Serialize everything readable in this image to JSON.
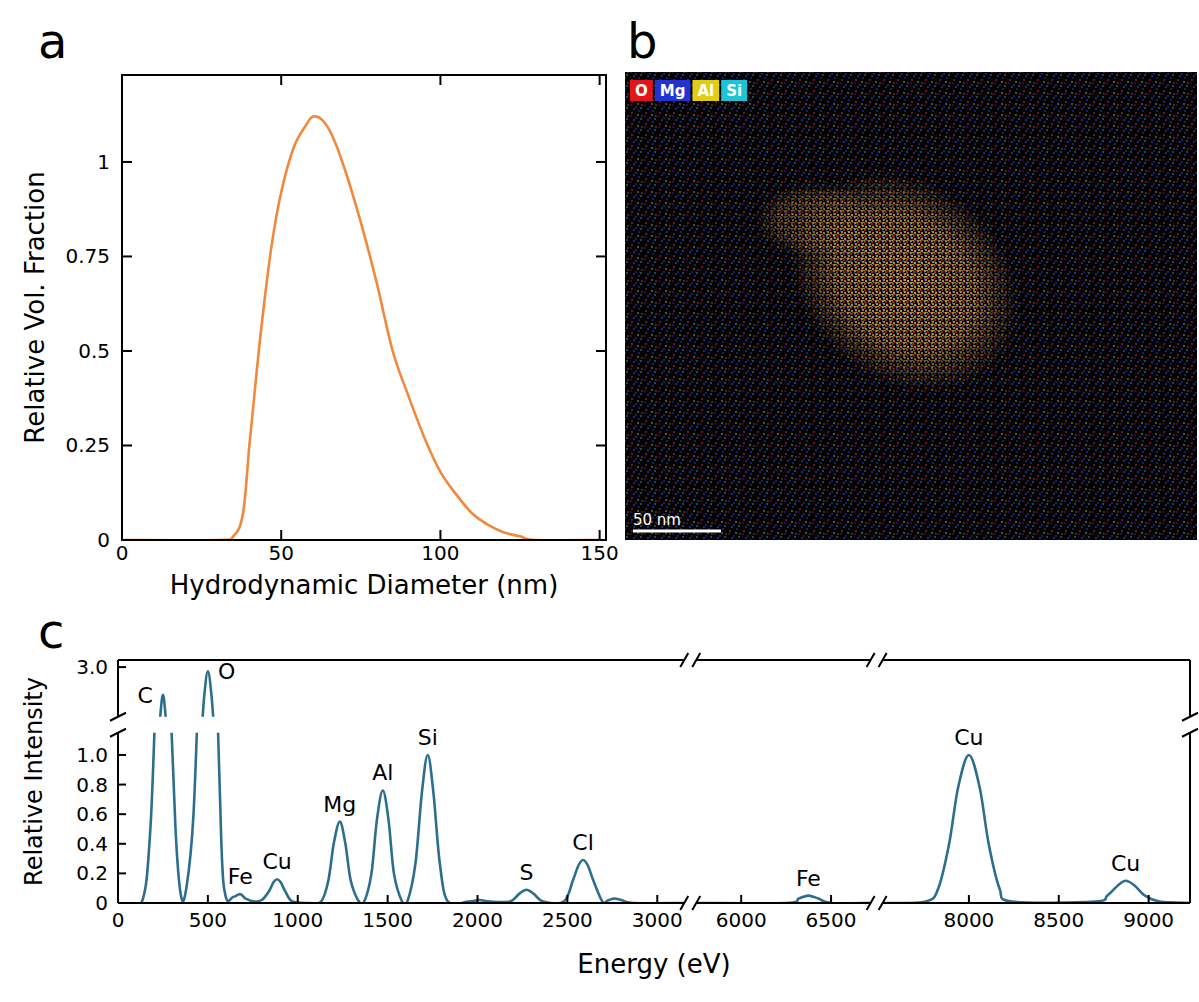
{
  "chart_data": [
    {
      "panel_label": "a",
      "type": "line",
      "x_label": "Hydrodynamic Diameter (nm)",
      "y_label": "Relative Vol. Fraction",
      "x": [
        0,
        30,
        35,
        38,
        40,
        42,
        44,
        47,
        50,
        54,
        58,
        60,
        63,
        66,
        70,
        75,
        80,
        85,
        90,
        95,
        100,
        105,
        110,
        115,
        120,
        125,
        130,
        150
      ],
      "series": [
        {
          "color": "#f0883e",
          "values": [
            0,
            0,
            0.01,
            0.07,
            0.25,
            0.42,
            0.58,
            0.78,
            0.92,
            1.04,
            1.1,
            1.12,
            1.11,
            1.07,
            0.98,
            0.84,
            0.68,
            0.5,
            0.38,
            0.27,
            0.18,
            0.12,
            0.07,
            0.04,
            0.02,
            0.01,
            0,
            0
          ]
        }
      ],
      "xlim": [
        0,
        152
      ],
      "ylim": [
        0,
        1.23
      ],
      "xticks": [
        0,
        50,
        100,
        150
      ],
      "yticks": [
        0,
        0.25,
        0.5,
        0.75,
        1
      ]
    },
    {
      "panel_label": "c",
      "type": "line",
      "x_label": "Energy (eV)",
      "y_label": "Relative Intensity",
      "xlim": [
        0,
        9230
      ],
      "x_breaks": [
        [
          3150,
          5750
        ],
        [
          6720,
          7520
        ]
      ],
      "ylim": [
        0,
        3.1
      ],
      "y_breaks": [
        [
          1.15,
          2.3
        ]
      ],
      "series": [
        {
          "color": "#2d6e8e",
          "x": [
            0,
            130,
            180,
            215,
            235,
            250,
            265,
            285,
            320,
            350,
            380,
            420,
            460,
            480,
            500,
            520,
            540,
            575,
            600,
            640,
            680,
            710,
            760,
            800,
            840,
            865,
            885,
            905,
            930,
            970,
            1060,
            1130,
            1170,
            1200,
            1234,
            1265,
            1295,
            1340,
            1370,
            1410,
            1440,
            1473,
            1505,
            1535,
            1580,
            1610,
            1655,
            1690,
            1723,
            1755,
            1790,
            1835,
            1950,
            2010,
            2070,
            2180,
            2230,
            2272,
            2315,
            2365,
            2480,
            2530,
            2560,
            2587,
            2615,
            2645,
            2695,
            2730,
            2760,
            2800,
            2870,
            3150
          ],
          "values": [
            0,
            0,
            0.5,
            1.6,
            2.3,
            2.61,
            2.3,
            1.6,
            0.5,
            0.05,
            0.1,
            0.6,
            1.9,
            2.6,
            2.94,
            2.6,
            1.9,
            0.4,
            0.04,
            0.04,
            0.06,
            0.03,
            0.01,
            0.02,
            0.08,
            0.14,
            0.16,
            0.14,
            0.08,
            0.01,
            0,
            0.01,
            0.15,
            0.4,
            0.55,
            0.4,
            0.15,
            0.01,
            0.01,
            0.2,
            0.56,
            0.76,
            0.56,
            0.2,
            0.01,
            0.01,
            0.27,
            0.74,
            1.0,
            0.74,
            0.27,
            0.01,
            0.01,
            0.02,
            0.01,
            0.01,
            0.06,
            0.09,
            0.06,
            0.01,
            0.01,
            0.15,
            0.25,
            0.29,
            0.25,
            0.15,
            0.01,
            0.02,
            0.03,
            0.02,
            0,
            0
          ]
        },
        {
          "color": "#2d6e8e",
          "x": [
            5750,
            6250,
            6320,
            6374,
            6430,
            6500,
            6720
          ],
          "values": [
            0,
            0,
            0.03,
            0.05,
            0.03,
            0,
            0
          ]
        },
        {
          "color": "#2d6e8e",
          "x": [
            7520,
            7760,
            7830,
            7890,
            7940,
            8000,
            8060,
            8110,
            8170,
            8240,
            8700,
            8770,
            8830,
            8872,
            8920,
            8980,
            9060,
            9230
          ],
          "values": [
            0,
            0.01,
            0.1,
            0.4,
            0.78,
            1.0,
            0.78,
            0.4,
            0.1,
            0.01,
            0.01,
            0.05,
            0.12,
            0.15,
            0.12,
            0.05,
            0.01,
            0
          ]
        }
      ],
      "annotations": [
        {
          "text": "C",
          "x": 250,
          "y": 2.61
        },
        {
          "text": "O",
          "x": 500,
          "y": 2.94
        },
        {
          "text": "Fe",
          "x": 680,
          "y": 0.06
        },
        {
          "text": "Cu",
          "x": 885,
          "y": 0.16
        },
        {
          "text": "Mg",
          "x": 1234,
          "y": 0.55
        },
        {
          "text": "Al",
          "x": 1473,
          "y": 0.76
        },
        {
          "text": "Si",
          "x": 1723,
          "y": 1.0
        },
        {
          "text": "S",
          "x": 2272,
          "y": 0.09
        },
        {
          "text": "Cl",
          "x": 2587,
          "y": 0.29
        },
        {
          "text": "Fe",
          "x": 6374,
          "y": 0.05
        },
        {
          "text": "Cu",
          "x": 8000,
          "y": 1.0
        },
        {
          "text": "Cu",
          "x": 8872,
          "y": 0.15
        }
      ],
      "xticks": [
        0,
        500,
        1000,
        1500,
        2000,
        2500,
        3000,
        6000,
        6500,
        8000,
        8500,
        9000
      ],
      "yticks": [
        0,
        0.2,
        0.4,
        0.6,
        0.8,
        {
          "value": 1,
          "label": "1.0"
        },
        {
          "value": 3,
          "label": "3.0"
        }
      ]
    }
  ],
  "image_panel": {
    "panel_label": "b",
    "legend": [
      {
        "name": "O",
        "color": "#e0161b"
      },
      {
        "name": "Mg",
        "color": "#2233d0"
      },
      {
        "name": "Al",
        "color": "#e3cc14"
      },
      {
        "name": "Si",
        "color": "#1ec3d6"
      }
    ],
    "scale_bar": "50 nm"
  }
}
